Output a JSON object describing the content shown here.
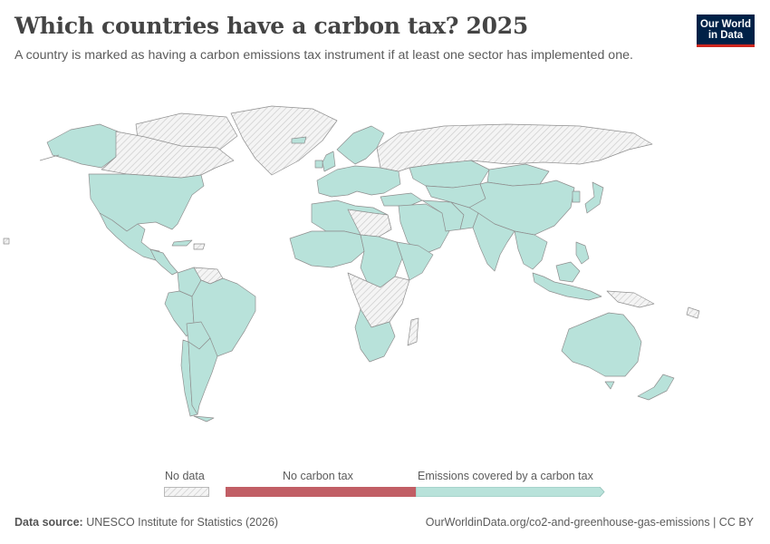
{
  "header": {
    "title": "Which countries have a carbon tax? 2025",
    "subtitle": "A country is marked as having a carbon emissions tax instrument if at least one sector has implemented one."
  },
  "logo": {
    "line1": "Our World",
    "line2": "in Data"
  },
  "legend": {
    "items": [
      {
        "label": "No data",
        "color": "hatched-grey"
      },
      {
        "label": "No carbon tax",
        "color": "#c15e65"
      },
      {
        "label": "Emissions covered by a carbon tax",
        "color": "#b8e2da"
      }
    ]
  },
  "map": {
    "projection": "world",
    "fill_colors": {
      "carbon_tax": "#b8e2da",
      "no_carbon_tax": "#c15e65",
      "no_data": "hatched-grey",
      "border": "#8a8a8a"
    }
  },
  "footer": {
    "source_label": "Data source:",
    "source_text": "UNESCO Institute for Statistics (2026)",
    "url_text": "OurWorldinData.org/co2-and-greenhouse-gas-emissions | CC BY"
  }
}
